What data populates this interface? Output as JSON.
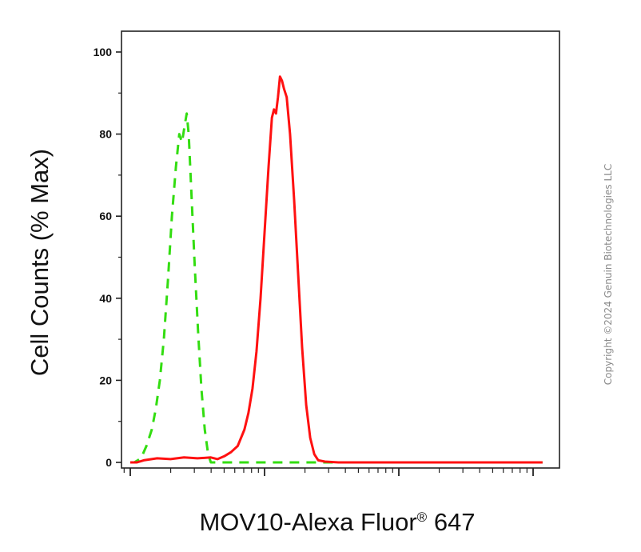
{
  "chart_data": {
    "type": "line",
    "xlabel": "MOV10-Alexa Fluor",
    "xlabel_mark": "®",
    "xlabel_suffix": " 647",
    "ylabel": "Cell Counts (% Max)",
    "x_scale": "log",
    "y_ticks": [
      "0",
      "20",
      "40",
      "60",
      "80",
      "100"
    ],
    "ylim": [
      0,
      100
    ],
    "grid": false,
    "legend": "none",
    "series": [
      {
        "color": "#33dd11",
        "dash": "dashed",
        "points": [
          [
            0.0,
            0
          ],
          [
            0.03,
            0
          ],
          [
            0.08,
            1
          ],
          [
            0.12,
            4
          ],
          [
            0.16,
            8
          ],
          [
            0.19,
            13
          ],
          [
            0.22,
            20
          ],
          [
            0.25,
            30
          ],
          [
            0.28,
            44
          ],
          [
            0.31,
            60
          ],
          [
            0.34,
            72
          ],
          [
            0.365,
            80
          ],
          [
            0.385,
            78
          ],
          [
            0.405,
            82
          ],
          [
            0.42,
            85
          ],
          [
            0.435,
            80
          ],
          [
            0.455,
            66
          ],
          [
            0.48,
            48
          ],
          [
            0.505,
            32
          ],
          [
            0.53,
            18
          ],
          [
            0.555,
            8
          ],
          [
            0.58,
            2
          ],
          [
            0.6,
            0
          ],
          [
            0.7,
            0
          ],
          [
            0.8,
            0
          ],
          [
            0.9,
            0
          ],
          [
            1.0,
            0
          ],
          [
            1.1,
            0
          ],
          [
            1.2,
            0
          ],
          [
            1.3,
            0
          ],
          [
            1.45,
            0
          ],
          [
            1.6,
            0
          ],
          [
            1.8,
            0
          ],
          [
            2.0,
            0
          ],
          [
            2.2,
            0
          ],
          [
            2.4,
            0
          ],
          [
            2.6,
            0
          ],
          [
            2.8,
            0
          ],
          [
            3.07,
            0
          ]
        ]
      },
      {
        "color": "#ff1111",
        "dash": "solid",
        "points": [
          [
            0.0,
            0
          ],
          [
            0.05,
            0
          ],
          [
            0.1,
            0.5
          ],
          [
            0.2,
            1
          ],
          [
            0.3,
            0.8
          ],
          [
            0.4,
            1.2
          ],
          [
            0.5,
            1.0
          ],
          [
            0.6,
            1.2
          ],
          [
            0.65,
            0.8
          ],
          [
            0.7,
            1.5
          ],
          [
            0.75,
            2.5
          ],
          [
            0.8,
            4
          ],
          [
            0.85,
            8
          ],
          [
            0.88,
            12
          ],
          [
            0.91,
            18
          ],
          [
            0.94,
            27
          ],
          [
            0.97,
            40
          ],
          [
            1.0,
            56
          ],
          [
            1.03,
            72
          ],
          [
            1.055,
            84
          ],
          [
            1.07,
            86
          ],
          [
            1.085,
            85
          ],
          [
            1.1,
            89
          ],
          [
            1.115,
            94
          ],
          [
            1.13,
            93
          ],
          [
            1.145,
            91
          ],
          [
            1.165,
            89
          ],
          [
            1.19,
            80
          ],
          [
            1.22,
            64
          ],
          [
            1.25,
            46
          ],
          [
            1.28,
            28
          ],
          [
            1.31,
            14
          ],
          [
            1.34,
            6
          ],
          [
            1.37,
            2
          ],
          [
            1.4,
            0.5
          ],
          [
            1.45,
            0.2
          ],
          [
            1.55,
            0
          ],
          [
            1.8,
            0
          ],
          [
            2.2,
            0
          ],
          [
            2.6,
            0
          ],
          [
            3.07,
            0
          ]
        ]
      }
    ]
  },
  "copyright": "Copyright ©2024 Genuin Biotechnologies LLC"
}
